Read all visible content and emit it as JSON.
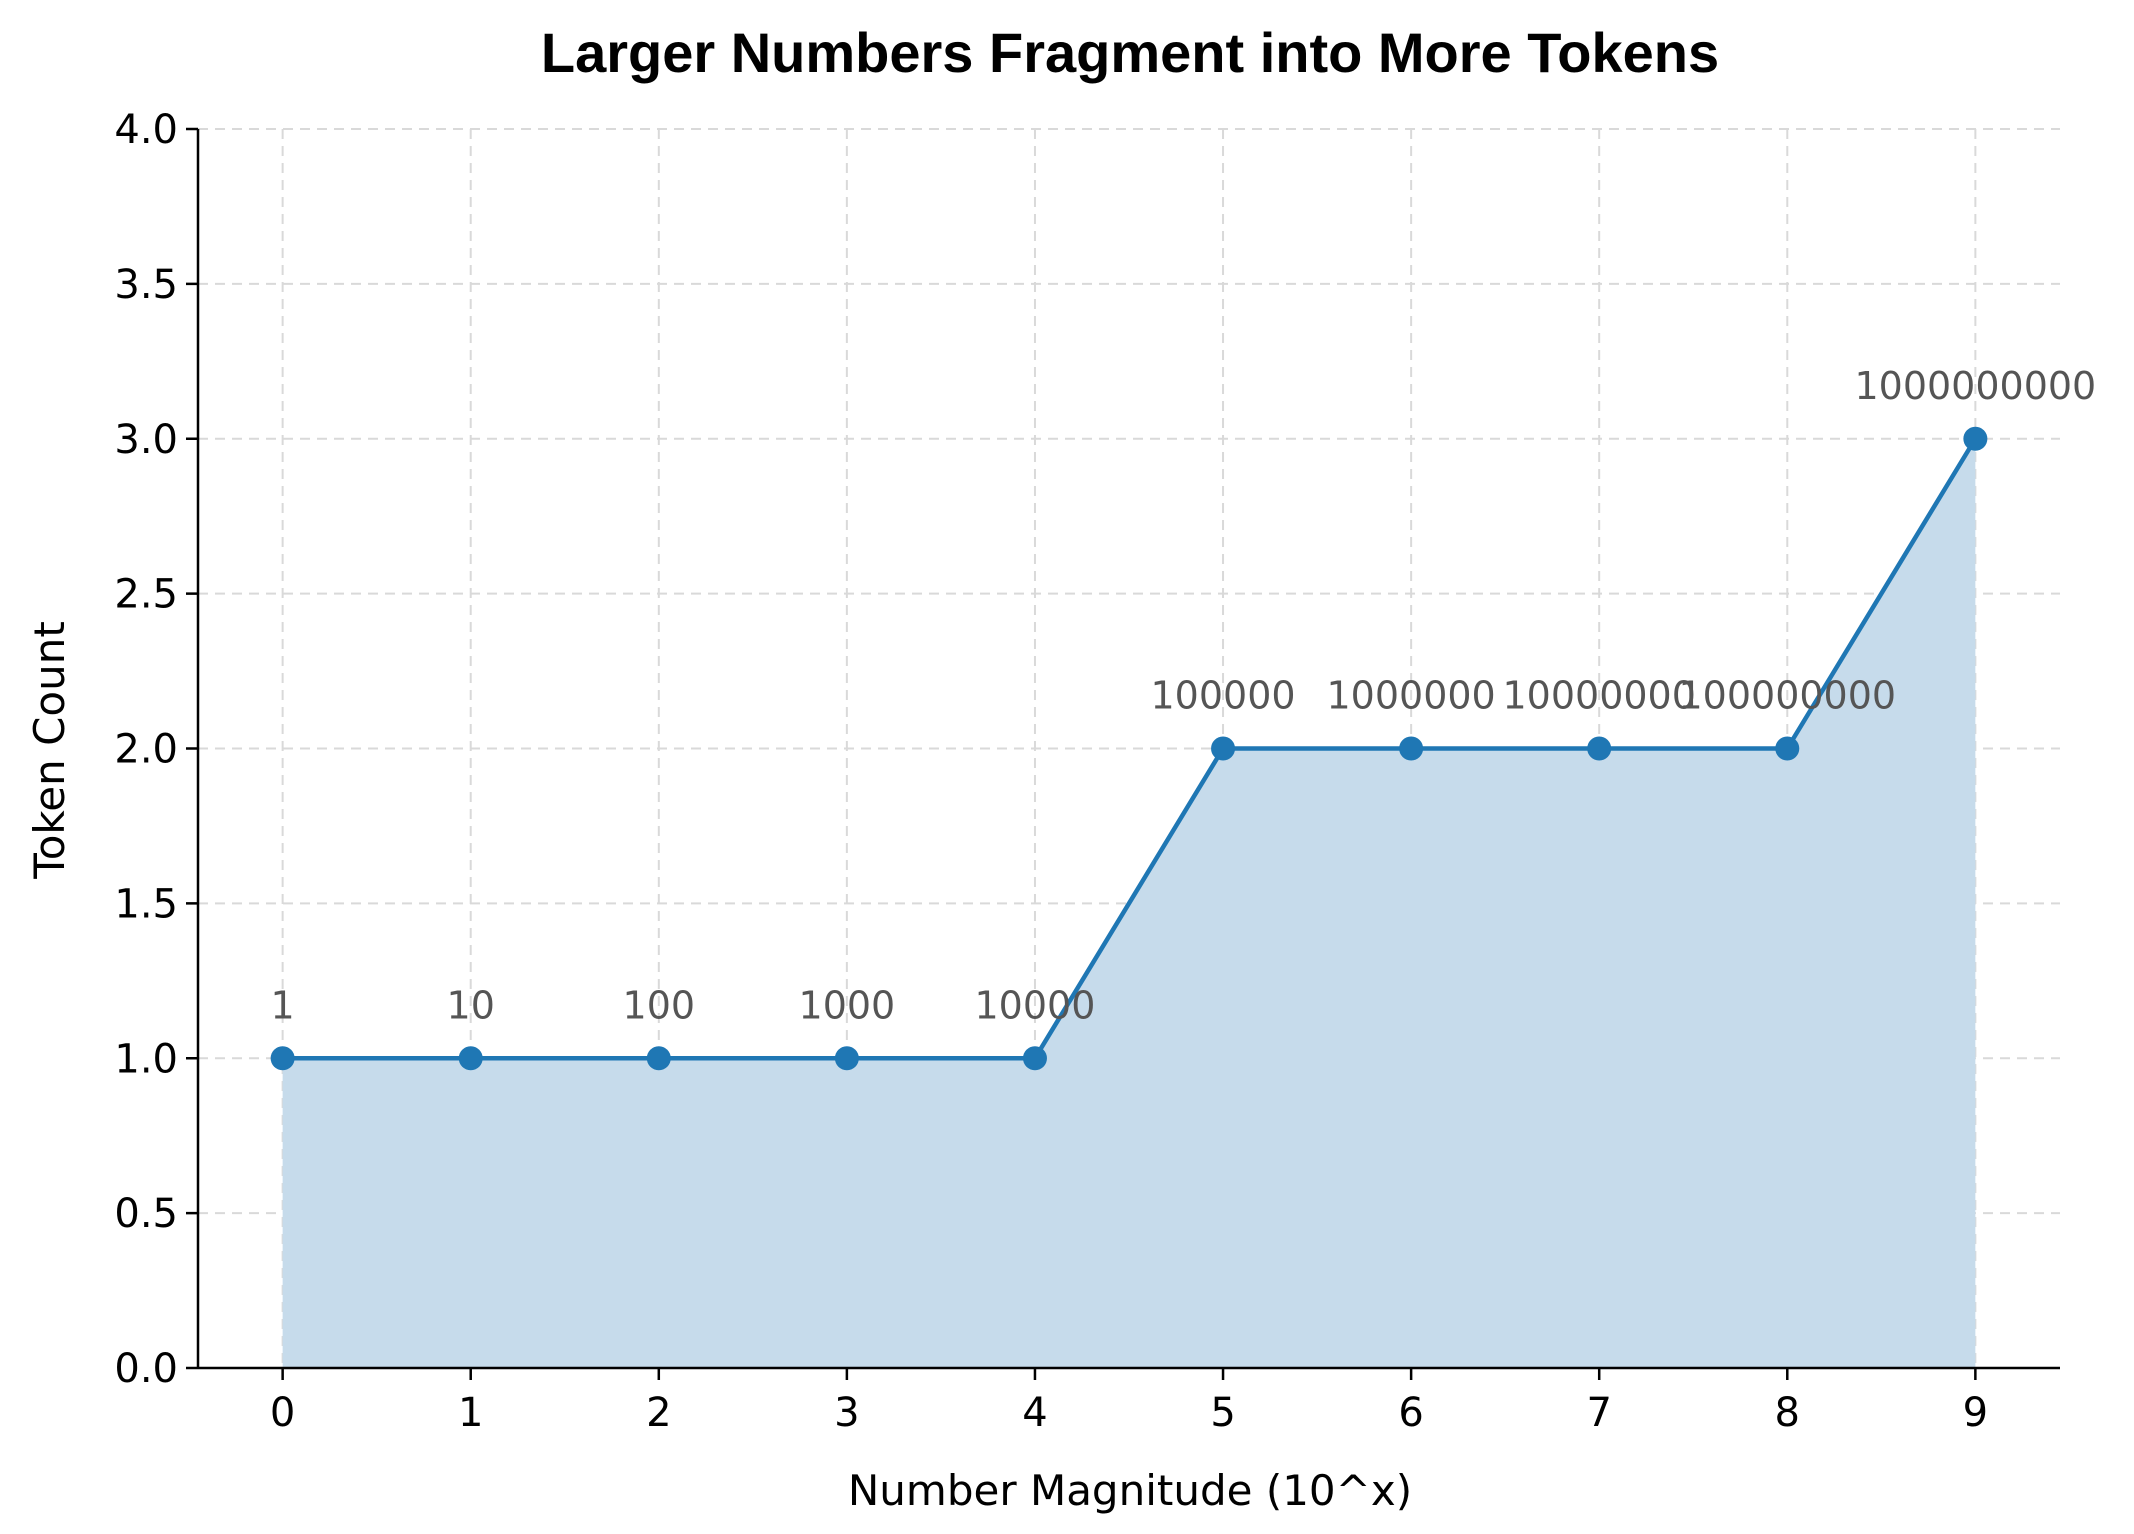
{
  "chart_data": {
    "type": "line",
    "title": "Larger Numbers Fragment into More Tokens",
    "xlabel": "Number Magnitude (10^x)",
    "ylabel": "Token Count",
    "x": [
      0,
      1,
      2,
      3,
      4,
      5,
      6,
      7,
      8,
      9
    ],
    "values": [
      1,
      1,
      1,
      1,
      1,
      2,
      2,
      2,
      2,
      3
    ],
    "point_labels": [
      "1",
      "10",
      "100",
      "1000",
      "10000",
      "100000",
      "1000000",
      "10000000",
      "100000000",
      "1000000000"
    ],
    "xlim": [
      -0.45,
      9.45
    ],
    "ylim": [
      0,
      4.0
    ],
    "xticks": [
      "0",
      "1",
      "2",
      "3",
      "4",
      "5",
      "6",
      "7",
      "8",
      "9"
    ],
    "yticks": [
      "0.0",
      "0.5",
      "1.0",
      "1.5",
      "2.0",
      "2.5",
      "3.0",
      "3.5",
      "4.0"
    ],
    "grid": true,
    "area_fill": true,
    "colors": {
      "line": "#1f77b4",
      "fill": "#c6dbeb",
      "data_label": "#555555"
    }
  }
}
